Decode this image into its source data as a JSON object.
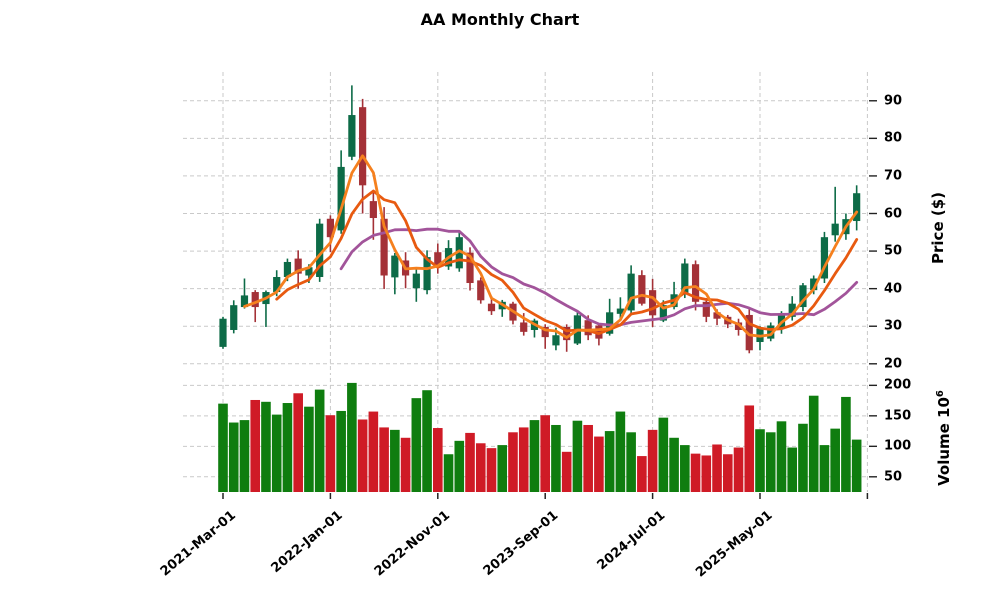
{
  "chart_data": {
    "type": "candlestick",
    "title": "AA Monthly Chart",
    "price_axis": {
      "label": "Price ($)",
      "ticks": [
        20,
        30,
        40,
        50,
        60,
        70,
        80,
        90
      ],
      "range": [
        18,
        98
      ]
    },
    "volume_axis": {
      "label": "Volume",
      "unit_base": "10",
      "unit_exp": "6",
      "ticks": [
        50,
        100,
        150,
        200
      ],
      "range": [
        25,
        230
      ]
    },
    "x_ticks": [
      {
        "index": 0,
        "label": "2021-Mar-01"
      },
      {
        "index": 10,
        "label": "2022-Jan-01"
      },
      {
        "index": 20,
        "label": "2022-Nov-01"
      },
      {
        "index": 30,
        "label": "2023-Sep-01"
      },
      {
        "index": 40,
        "label": "2024-Jul-01"
      },
      {
        "index": 50,
        "label": "2025-May-01"
      },
      {
        "index": 60,
        "label": ""
      }
    ],
    "bar_count": 60,
    "open": [
      24.5,
      29.0,
      35.1,
      39.1,
      35.9,
      39.1,
      43.1,
      48.0,
      43.5,
      43.1,
      58.6,
      55.5,
      75.1,
      88.3,
      63.3,
      58.6,
      43.0,
      47.5,
      40.1,
      39.6,
      49.7,
      45.9,
      45.4,
      49.6,
      42.2,
      36.0,
      34.5,
      36.0,
      31.0,
      29.0,
      29.8,
      24.9,
      29.8,
      25.4,
      31.6,
      30.2,
      28.0,
      33.3,
      34.2,
      43.6,
      39.6,
      31.5,
      35.1,
      38.5,
      46.5,
      36.5,
      33.7,
      32.5,
      31.0,
      33.0,
      25.8,
      26.7,
      29.4,
      32.5,
      35.1,
      39.6,
      42.7,
      54.2,
      54.5,
      58.0
    ],
    "high": [
      32.5,
      36.9,
      42.7,
      39.6,
      39.5,
      44.9,
      48.0,
      50.2,
      46.5,
      58.6,
      59.5,
      76.8,
      94.1,
      90.5,
      66.1,
      61.7,
      49.5,
      49.7,
      45.3,
      50.2,
      52.0,
      52.9,
      55.5,
      51.0,
      43.0,
      38.0,
      37.0,
      36.5,
      33.5,
      32.0,
      30.5,
      29.6,
      30.5,
      34.2,
      32.9,
      30.8,
      37.3,
      37.7,
      46.2,
      44.9,
      42.6,
      36.9,
      41.8,
      48.0,
      47.5,
      37.5,
      34.5,
      33.0,
      32.0,
      34.7,
      30.0,
      31.0,
      34.0,
      38.0,
      41.5,
      43.5,
      55.1,
      67.1,
      60.0,
      67.5
    ],
    "low": [
      24.0,
      28.1,
      34.7,
      31.1,
      29.8,
      38.0,
      42.0,
      40.0,
      41.5,
      41.8,
      49.7,
      54.6,
      74.2,
      60.0,
      53.0,
      39.9,
      38.5,
      40.1,
      36.5,
      38.5,
      44.0,
      45.0,
      44.5,
      39.5,
      36.0,
      33.0,
      32.5,
      30.5,
      27.5,
      27.0,
      24.0,
      23.6,
      23.2,
      25.0,
      26.3,
      24.9,
      27.5,
      32.0,
      32.9,
      35.5,
      29.8,
      31.1,
      34.5,
      37.5,
      34.2,
      31.1,
      30.3,
      29.5,
      27.5,
      22.8,
      23.6,
      26.0,
      28.0,
      31.5,
      34.0,
      38.5,
      41.5,
      52.5,
      53.0,
      55.5
    ],
    "close": [
      32.0,
      35.6,
      38.2,
      35.1,
      39.1,
      43.1,
      47.1,
      44.0,
      45.7,
      57.3,
      53.7,
      72.4,
      86.2,
      67.5,
      58.8,
      43.5,
      48.8,
      43.5,
      44.0,
      48.4,
      45.7,
      50.8,
      53.7,
      41.5,
      36.9,
      34.0,
      36.5,
      31.5,
      28.5,
      31.5,
      27.1,
      27.6,
      26.3,
      32.9,
      27.6,
      26.7,
      33.7,
      34.7,
      44.0,
      36.0,
      32.9,
      35.6,
      38.5,
      46.7,
      36.5,
      32.5,
      32.0,
      30.5,
      29.0,
      23.6,
      29.4,
      30.2,
      33.4,
      36.0,
      40.9,
      42.7,
      53.7,
      57.3,
      58.5,
      65.4
    ],
    "volume_millions": [
      170,
      139,
      143,
      176,
      173,
      152,
      171,
      187,
      165,
      193,
      151,
      158,
      204,
      144,
      157,
      131,
      127,
      114,
      179,
      192,
      130,
      87,
      109,
      122,
      105,
      97,
      102,
      123,
      131,
      143,
      151,
      135,
      91,
      142,
      135,
      116,
      125,
      157,
      123,
      84,
      127,
      147,
      114,
      102,
      88,
      85,
      103,
      87,
      98,
      167,
      128,
      123,
      141,
      98,
      137,
      183,
      102,
      129,
      181,
      111
    ],
    "moving_averages": [
      3,
      6,
      12
    ],
    "legend_position": "none",
    "grid": "dashed",
    "colors": {
      "candle_up": "#0d6b47",
      "candle_down": "#a43137",
      "volume_up": "#0f7d0f",
      "volume_down": "#cf1b26",
      "ma_colors": [
        "#f5801e",
        "#e85a10",
        "#a2549a"
      ],
      "grid": "#c9c9c9",
      "tick": "#222222",
      "background": "#ffffff"
    }
  }
}
